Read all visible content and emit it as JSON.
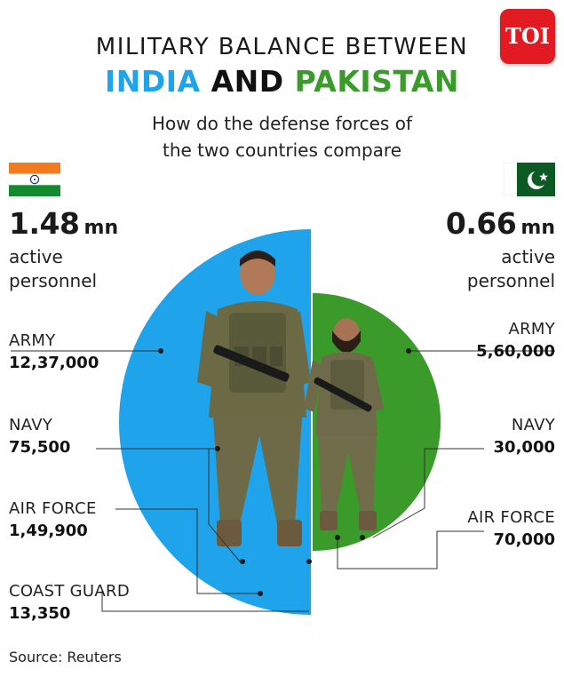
{
  "logo_text": "TOI",
  "title_line1": "MILITARY BALANCE BETWEEN",
  "title_line2": {
    "india": "INDIA",
    "and": "AND",
    "pakistan": "PAKISTAN"
  },
  "subtitle_line1": "How do the defense forces of",
  "subtitle_line2": "the two countries compare",
  "colors": {
    "india": "#1fa3ea",
    "pakistan": "#3a9a2a",
    "brand": "#e21b23"
  },
  "icons": {
    "india_flag": "india-flag-icon",
    "pakistan_flag": "pakistan-flag-icon",
    "logo": "toi-logo"
  },
  "chart_data": {
    "type": "pie",
    "title": "MILITARY BALANCE BETWEEN INDIA AND PAKISTAN",
    "subtitle": "How do the defense forces of the two countries compare",
    "series": [
      {
        "name": "INDIA",
        "total": "1.48",
        "total_unit": "mn",
        "total_label": "active personnel",
        "categories": [
          "ARMY",
          "NAVY",
          "AIR FORCE",
          "COAST GUARD"
        ],
        "values": [
          1237000,
          75500,
          149900,
          13350
        ],
        "value_labels": [
          "12,37,000",
          "75,500",
          "1,49,900",
          "13,350"
        ]
      },
      {
        "name": "PAKISTAN",
        "total": "0.66",
        "total_unit": "mn",
        "total_label": "active personnel",
        "categories": [
          "ARMY",
          "NAVY",
          "AIR FORCE"
        ],
        "values": [
          560000,
          30000,
          70000
        ],
        "value_labels": [
          "5,60,000",
          "30,000",
          "70,000"
        ]
      }
    ]
  },
  "india": {
    "total": "1.48",
    "unit": "mn",
    "active": "active",
    "personnel": "personnel",
    "army_label": "ARMY",
    "army_value": "12,37,000",
    "navy_label": "NAVY",
    "navy_value": "75,500",
    "air_label": "AIR FORCE",
    "air_value": "1,49,900",
    "coast_label": "COAST GUARD",
    "coast_value": "13,350"
  },
  "pakistan": {
    "total": "0.66",
    "unit": "mn",
    "active": "active",
    "personnel": "personnel",
    "army_label": "ARMY",
    "army_value": "5,60,000",
    "navy_label": "NAVY",
    "navy_value": "30,000",
    "air_label": "AIR FORCE",
    "air_value": "70,000"
  },
  "source": "Source: Reuters"
}
